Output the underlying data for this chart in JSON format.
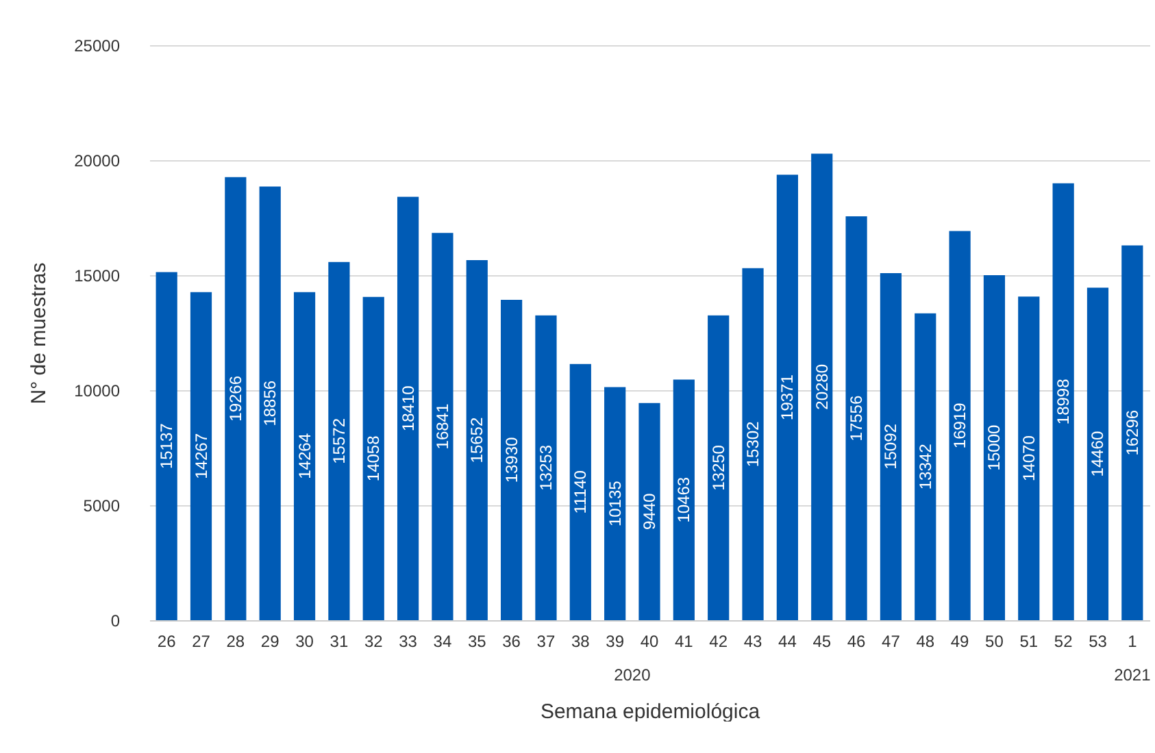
{
  "chart_data": {
    "type": "bar",
    "xlabel": "Semana epidemiológica",
    "ylabel": "N° de muestras",
    "categories": [
      "26",
      "27",
      "28",
      "29",
      "30",
      "31",
      "32",
      "33",
      "34",
      "35",
      "36",
      "37",
      "38",
      "39",
      "40",
      "41",
      "42",
      "43",
      "44",
      "45",
      "46",
      "47",
      "48",
      "49",
      "50",
      "51",
      "52",
      "53",
      "1"
    ],
    "values": [
      15137,
      14267,
      19266,
      18856,
      14264,
      15572,
      14058,
      18410,
      16841,
      15652,
      13930,
      13253,
      11140,
      10135,
      9440,
      10463,
      13250,
      15302,
      19371,
      20280,
      17556,
      15092,
      13342,
      16919,
      15000,
      14070,
      18998,
      14460,
      16296
    ],
    "color": "#005bb5",
    "ylim": [
      0,
      25000
    ],
    "yticks": [
      0,
      5000,
      10000,
      15000,
      20000,
      25000
    ],
    "grid": "y",
    "data_labels": true,
    "annotations": [
      "2020",
      "2021"
    ]
  }
}
